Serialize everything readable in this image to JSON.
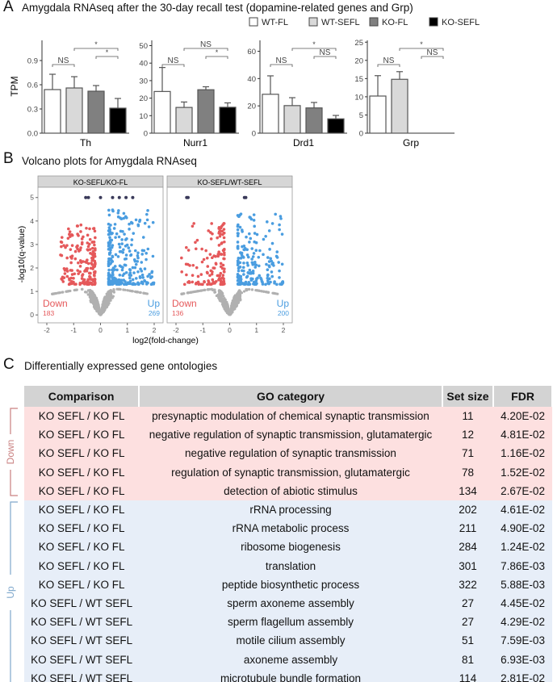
{
  "panelA": {
    "letter": "A",
    "title": "Amygdala RNAseq after the 30-day recall test (dopamine-related genes and Grp)"
  },
  "panelB": {
    "letter": "B",
    "title": "Volcano plots for Amygdala RNAseq"
  },
  "panelC": {
    "letter": "C",
    "title": "Differentially expressed gene ontologies"
  },
  "chart_data": [
    {
      "type": "bar",
      "ylabel": "TPM",
      "groups": [
        "WT-FL",
        "WT-SEFL",
        "KO-FL",
        "KO-SEFL"
      ],
      "group_colors": [
        "#ffffff",
        "#d9d9d9",
        "#808080",
        "#000000"
      ],
      "charts": [
        {
          "gene": "Th",
          "ylim": [
            0,
            1.15
          ],
          "ticks": [
            0.0,
            0.3,
            0.6,
            0.9
          ],
          "tick_labels": [
            "0.0",
            "0.3",
            "0.6",
            "0.9"
          ],
          "values": [
            0.54,
            0.56,
            0.52,
            0.31
          ],
          "err_top": [
            0.73,
            0.7,
            0.59,
            0.43
          ],
          "sig": [
            {
              "a": 0,
              "b": 1,
              "label": "NS",
              "level": 0
            },
            {
              "a": 1,
              "b": 3,
              "label": "*",
              "level": 2
            },
            {
              "a": 2,
              "b": 3,
              "label": "*",
              "level": 1
            }
          ]
        },
        {
          "gene": "Nurr1",
          "ylim": [
            0,
            53
          ],
          "ticks": [
            0,
            10,
            20,
            30,
            40,
            50
          ],
          "tick_labels": [
            "0",
            "10",
            "20",
            "30",
            "40",
            "50"
          ],
          "values": [
            23.8,
            14.7,
            24.8,
            14.8
          ],
          "err_top": [
            37.5,
            17.8,
            26.5,
            17.3
          ],
          "sig": [
            {
              "a": 0,
              "b": 1,
              "label": "NS",
              "level": 0
            },
            {
              "a": 1,
              "b": 3,
              "label": "NS",
              "level": 2
            },
            {
              "a": 2,
              "b": 3,
              "label": "*",
              "level": 1
            }
          ]
        },
        {
          "gene": "Drd1",
          "ylim": [
            0,
            68
          ],
          "ticks": [
            0,
            20,
            40,
            60
          ],
          "tick_labels": [
            "0",
            "20",
            "40",
            "60"
          ],
          "values": [
            28.5,
            20.2,
            18.5,
            10.5
          ],
          "err_top": [
            42,
            26,
            22.5,
            13
          ],
          "sig": [
            {
              "a": 0,
              "b": 1,
              "label": "NS",
              "level": 0
            },
            {
              "a": 1,
              "b": 3,
              "label": "*",
              "level": 2
            },
            {
              "a": 2,
              "b": 3,
              "label": "NS",
              "level": 1
            }
          ]
        },
        {
          "gene": "Grp",
          "ylim": [
            0,
            25.5
          ],
          "ticks": [
            0,
            5,
            10,
            15,
            20,
            25
          ],
          "tick_labels": [
            "0",
            "5",
            "10",
            "15",
            "20",
            "25"
          ],
          "values": [
            10.2,
            14.8,
            null,
            null
          ],
          "err_top": [
            15.8,
            16.9,
            null,
            null
          ],
          "sig": [
            {
              "a": 0,
              "b": 1,
              "label": "NS",
              "level": 0
            },
            {
              "a": 1,
              "b": 3,
              "label": "*",
              "level": 2
            },
            {
              "a": 2,
              "b": 3,
              "label": "NS",
              "level": 1
            }
          ]
        }
      ]
    },
    {
      "type": "scatter",
      "xlabel": "log2(fold-change)",
      "ylabel": "-log10(q-value)",
      "xlim": [
        -2.15,
        2.15
      ],
      "ylim": [
        -0.2,
        5.3
      ],
      "xticks": [
        -2,
        -1,
        0,
        1,
        2
      ],
      "yticks": [
        0,
        1,
        2,
        3,
        4,
        5
      ],
      "colors": {
        "down": "#e5585a",
        "up": "#4a9de0",
        "ns": "#b0b0b0",
        "capped": "#3a3a5a"
      },
      "panels": [
        {
          "strip": "KO-SEFL/KO-FL",
          "down_label": "Down",
          "down_count": "183",
          "up_label": "Up",
          "up_count": "269"
        },
        {
          "strip": "KO-SEFL/WT-SEFL",
          "down_label": "Down",
          "down_count": "136",
          "up_label": "Up",
          "up_count": "200"
        }
      ]
    }
  ],
  "table": {
    "headers": [
      "Comparison",
      "GO category",
      "Set size",
      "FDR"
    ],
    "group_labels": {
      "down": "Down",
      "up": "Up"
    },
    "rows": [
      {
        "g": "down",
        "c": "KO SEFL / KO FL",
        "go": "presynaptic modulation of chemical synaptic transmission",
        "n": "11",
        "fdr": "4.20E-02"
      },
      {
        "g": "down",
        "c": "KO SEFL / KO FL",
        "go": "negative regulation of synaptic transmission, glutamatergic",
        "n": "12",
        "fdr": "4.81E-02"
      },
      {
        "g": "down",
        "c": "KO SEFL / KO FL",
        "go": "negative regulation of synaptic transmission",
        "n": "71",
        "fdr": "1.16E-02"
      },
      {
        "g": "down",
        "c": "KO SEFL / KO FL",
        "go": "regulation of synaptic transmission, glutamatergic",
        "n": "78",
        "fdr": "1.52E-02"
      },
      {
        "g": "down",
        "c": "KO SEFL / KO FL",
        "go": "detection of abiotic stimulus",
        "n": "134",
        "fdr": "2.67E-02"
      },
      {
        "g": "up",
        "c": "KO SEFL / KO FL",
        "go": "rRNA processing",
        "n": "202",
        "fdr": "4.61E-02"
      },
      {
        "g": "up",
        "c": "KO SEFL / KO FL",
        "go": "rRNA metabolic process",
        "n": "211",
        "fdr": "4.90E-02"
      },
      {
        "g": "up",
        "c": "KO SEFL / KO FL",
        "go": "ribosome biogenesis",
        "n": "284",
        "fdr": "1.24E-02"
      },
      {
        "g": "up",
        "c": "KO SEFL / KO FL",
        "go": "translation",
        "n": "301",
        "fdr": "7.86E-03"
      },
      {
        "g": "up",
        "c": "KO SEFL / KO FL",
        "go": "peptide biosynthetic process",
        "n": "322",
        "fdr": "5.88E-03"
      },
      {
        "g": "up",
        "c": "KO SEFL / WT SEFL",
        "go": "sperm axoneme assembly",
        "n": "27",
        "fdr": "4.45E-02"
      },
      {
        "g": "up",
        "c": "KO SEFL / WT SEFL",
        "go": "sperm flagellum assembly",
        "n": "27",
        "fdr": "4.29E-02"
      },
      {
        "g": "up",
        "c": "KO SEFL / WT SEFL",
        "go": "motile cilium assembly",
        "n": "51",
        "fdr": "7.59E-03"
      },
      {
        "g": "up",
        "c": "KO SEFL / WT SEFL",
        "go": "axoneme assembly",
        "n": "81",
        "fdr": "6.93E-03"
      },
      {
        "g": "up",
        "c": "KO SEFL / WT SEFL",
        "go": "microtubule bundle formation",
        "n": "114",
        "fdr": "2.81E-02"
      }
    ]
  }
}
